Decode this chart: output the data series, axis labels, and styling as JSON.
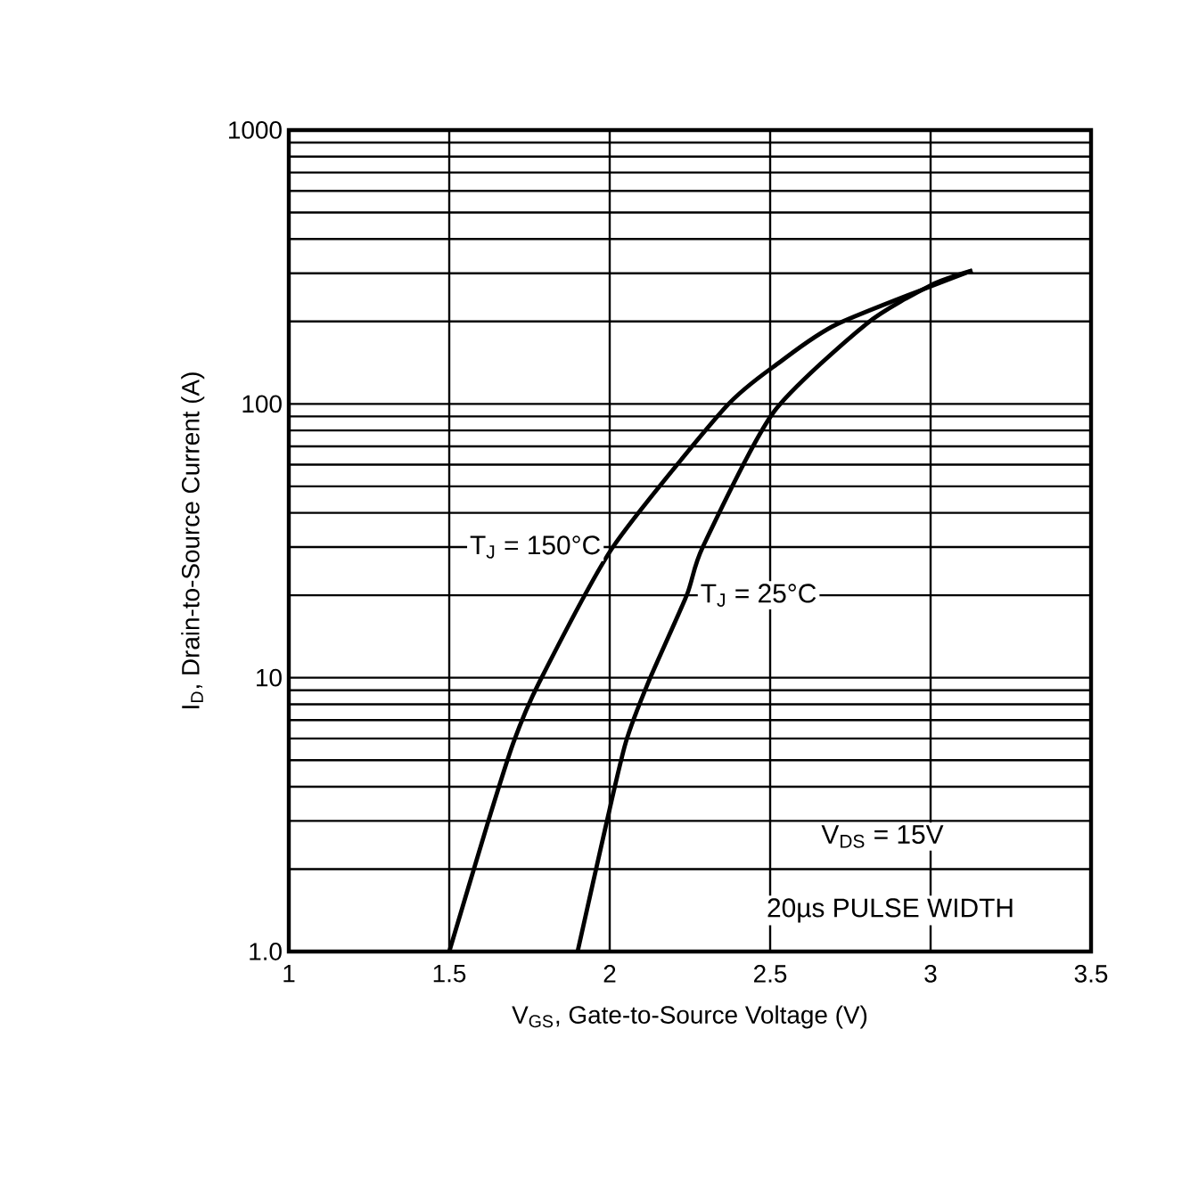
{
  "chart_data": {
    "type": "line",
    "xlabel": "V$_{GS}$, Gate-to-Source Voltage (V)",
    "ylabel": "I$_{D}$, Drain-to-Source Current (A)",
    "log": "y",
    "grid": true,
    "xlim": [
      1,
      3.5
    ],
    "xticks": [
      1,
      1.5,
      2,
      2.5,
      3,
      3.5
    ],
    "ylim": [
      1,
      1000
    ],
    "yticks": [
      {
        "value": 1,
        "label": "1.0"
      },
      10,
      100,
      1000
    ],
    "series": [
      {
        "name": "T$_{J}$ = 150°C",
        "color": "#000000",
        "x": [
          1.5,
          1.62,
          1.7,
          1.78,
          2.01,
          2.36,
          2.53,
          2.71,
          3.13
        ],
        "values": [
          1.0,
          2.95,
          5.8,
          9.6,
          30,
          97,
          142,
          196,
          307
        ]
      },
      {
        "name": "T$_{J}$ =  25°C",
        "color": "#000000",
        "x": [
          1.9,
          1.99,
          2.05,
          2.12,
          2.24,
          2.29,
          2.51,
          2.8,
          3.0,
          3.13
        ],
        "values": [
          1.0,
          2.95,
          5.8,
          9.6,
          20,
          30,
          93,
          196,
          271,
          307
        ]
      }
    ],
    "annotations": [
      "V$_{DS}$ = 15V",
      "20µs PULSE WIDTH"
    ]
  }
}
